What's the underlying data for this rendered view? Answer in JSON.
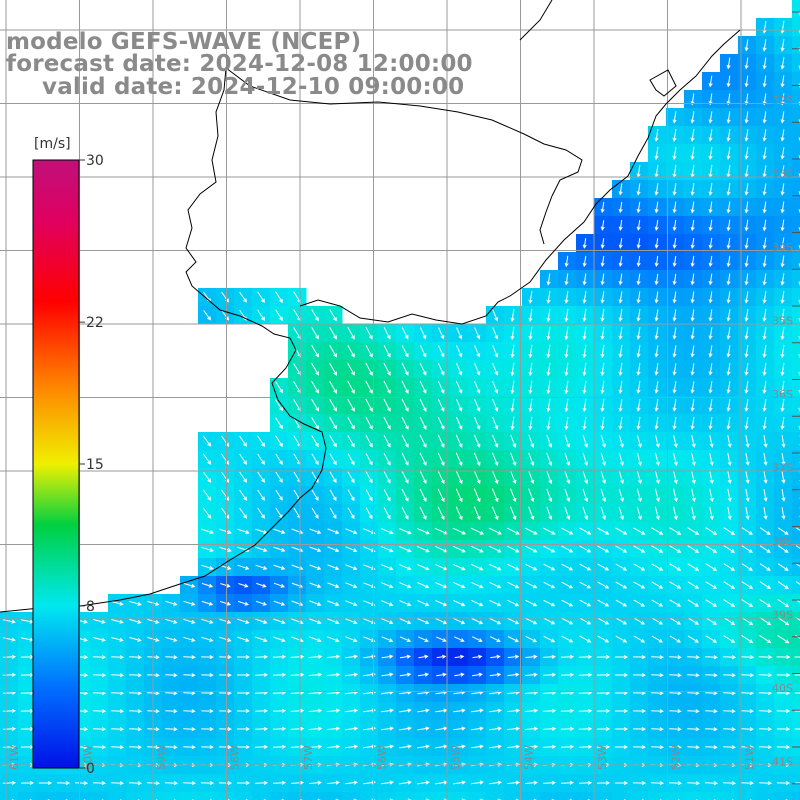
{
  "title": {
    "line1": "modelo GEFS-WAVE (NCEP)",
    "line2": "forecast date: 2024-12-08 12:00:00",
    "line3": "valid date: 2024-12-10 09:00:00"
  },
  "colorbar": {
    "unit": "[m/s]",
    "min": 0,
    "max": 30,
    "tick_labels": [
      {
        "label": "30",
        "value": 30
      },
      {
        "label": "22",
        "value": 22
      },
      {
        "label": "15",
        "value": 15
      },
      {
        "label": "8",
        "value": 8
      },
      {
        "label": "0",
        "value": 0
      }
    ],
    "stops": [
      {
        "value": 0,
        "color": "#0010e8"
      },
      {
        "value": 4,
        "color": "#0070ff"
      },
      {
        "value": 8,
        "color": "#00e8f0"
      },
      {
        "value": 12,
        "color": "#00d040"
      },
      {
        "value": 15,
        "color": "#f0f000"
      },
      {
        "value": 19,
        "color": "#ff8000"
      },
      {
        "value": 23,
        "color": "#ff0000"
      },
      {
        "value": 27,
        "color": "#e00060"
      },
      {
        "value": 30,
        "color": "#c0107a"
      }
    ]
  },
  "latitude_labels": [
    "32S",
    "33S",
    "34S",
    "35S",
    "36S",
    "37S",
    "38S",
    "39S",
    "40S",
    "41S"
  ],
  "longitude_labels": [
    "61W",
    "60W",
    "59W",
    "58W",
    "57W",
    "56W",
    "55W",
    "54W",
    "53W",
    "52W",
    "51W"
  ],
  "map": {
    "field": "wind speed",
    "projection_note": "regular lat-lon grid",
    "lon_range_deg": [
      -62,
      -50.8
    ],
    "lat_range_deg": [
      -41.5,
      -30.5
    ],
    "grid_lines": true,
    "vectors": "white wind arrows",
    "land_color": "#ffffff",
    "coastline_color": "#000000"
  },
  "chart_data": {
    "type": "heatmap",
    "title": "modelo GEFS-WAVE (NCEP)",
    "xlabel": "",
    "ylabel": "",
    "colorbar_range": [
      0,
      30
    ],
    "colorbar_unit": "[m/s]",
    "approx_values": [
      {
        "region": "near 35S 58W (Rio de la Plata outer)",
        "wind_speed_mps": 10
      },
      {
        "region": "near 37S 54W",
        "wind_speed_mps": 10
      },
      {
        "region": "near 34S 52W",
        "wind_speed_mps": 3
      },
      {
        "region": "near 39.5S 56W",
        "wind_speed_mps": 2
      },
      {
        "region": "near 39S 51W",
        "wind_speed_mps": 9
      },
      {
        "region": "near 40.5S 60W",
        "wind_speed_mps": 7
      }
    ]
  }
}
